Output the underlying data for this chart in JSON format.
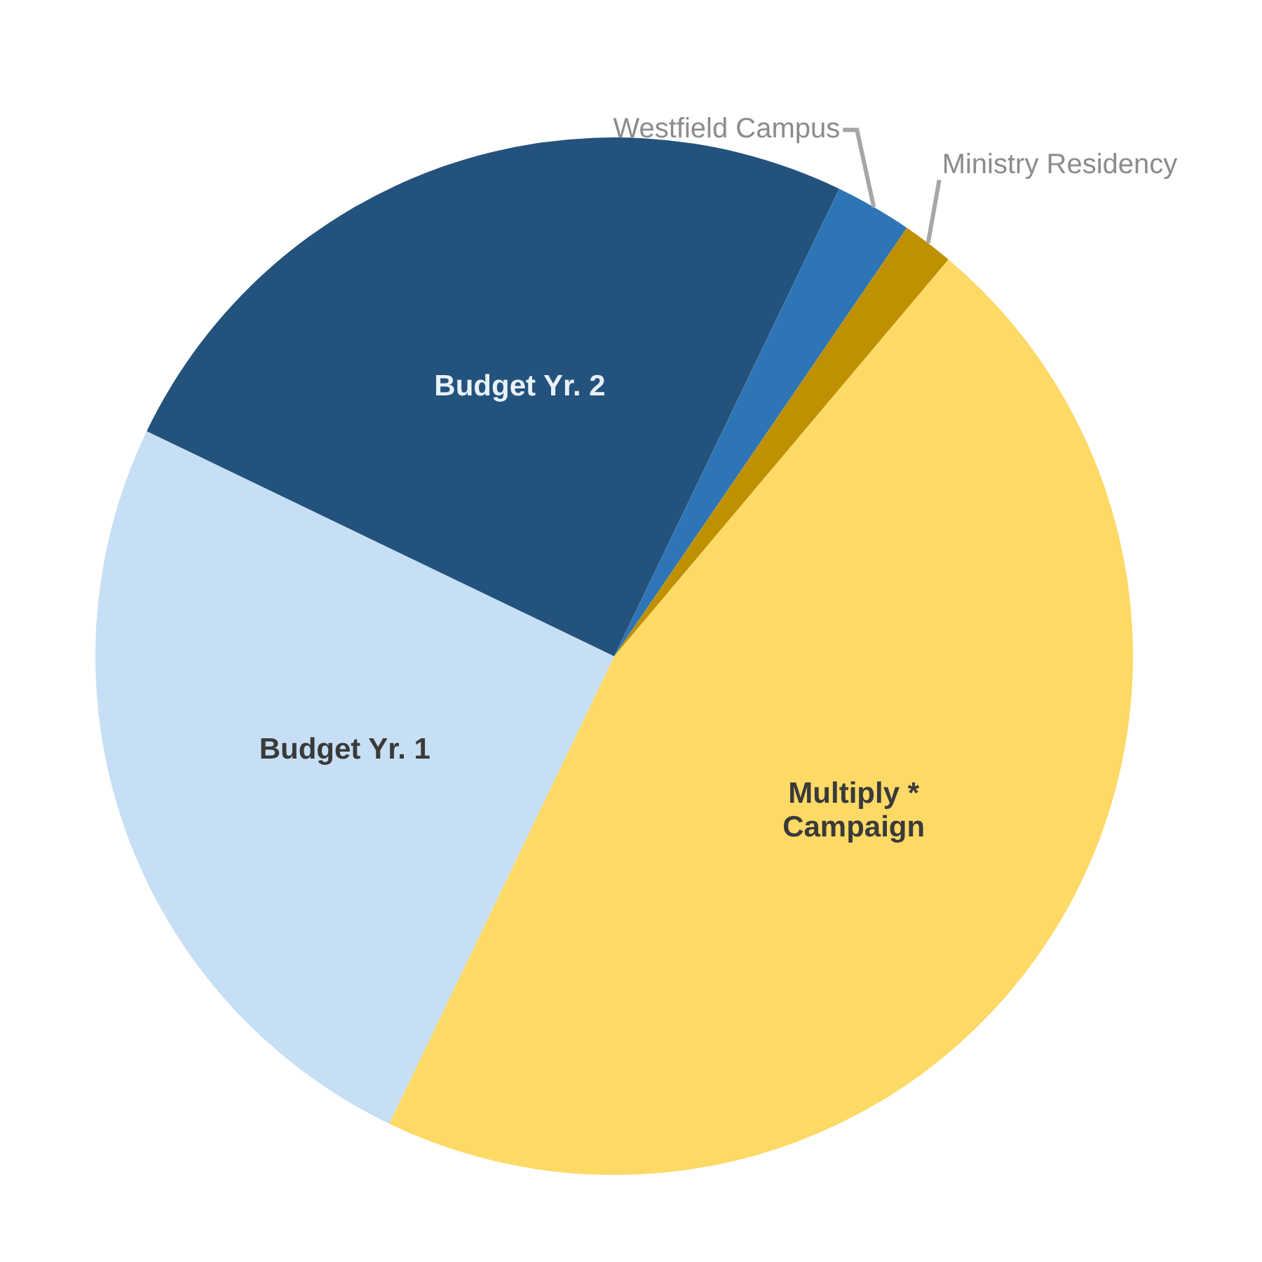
{
  "chart_data": {
    "type": "pie",
    "categories": [
      "Multiply * Campaign",
      "Budget Yr. 1",
      "Budget Yr. 2",
      "Westfield Campus",
      "Ministry Residency"
    ],
    "values": [
      46,
      25,
      25,
      2.4,
      1.6
    ],
    "colors": [
      "#fdd966",
      "#c6dff4",
      "#23527c",
      "#2e75b6",
      "#bf9000"
    ]
  }
}
